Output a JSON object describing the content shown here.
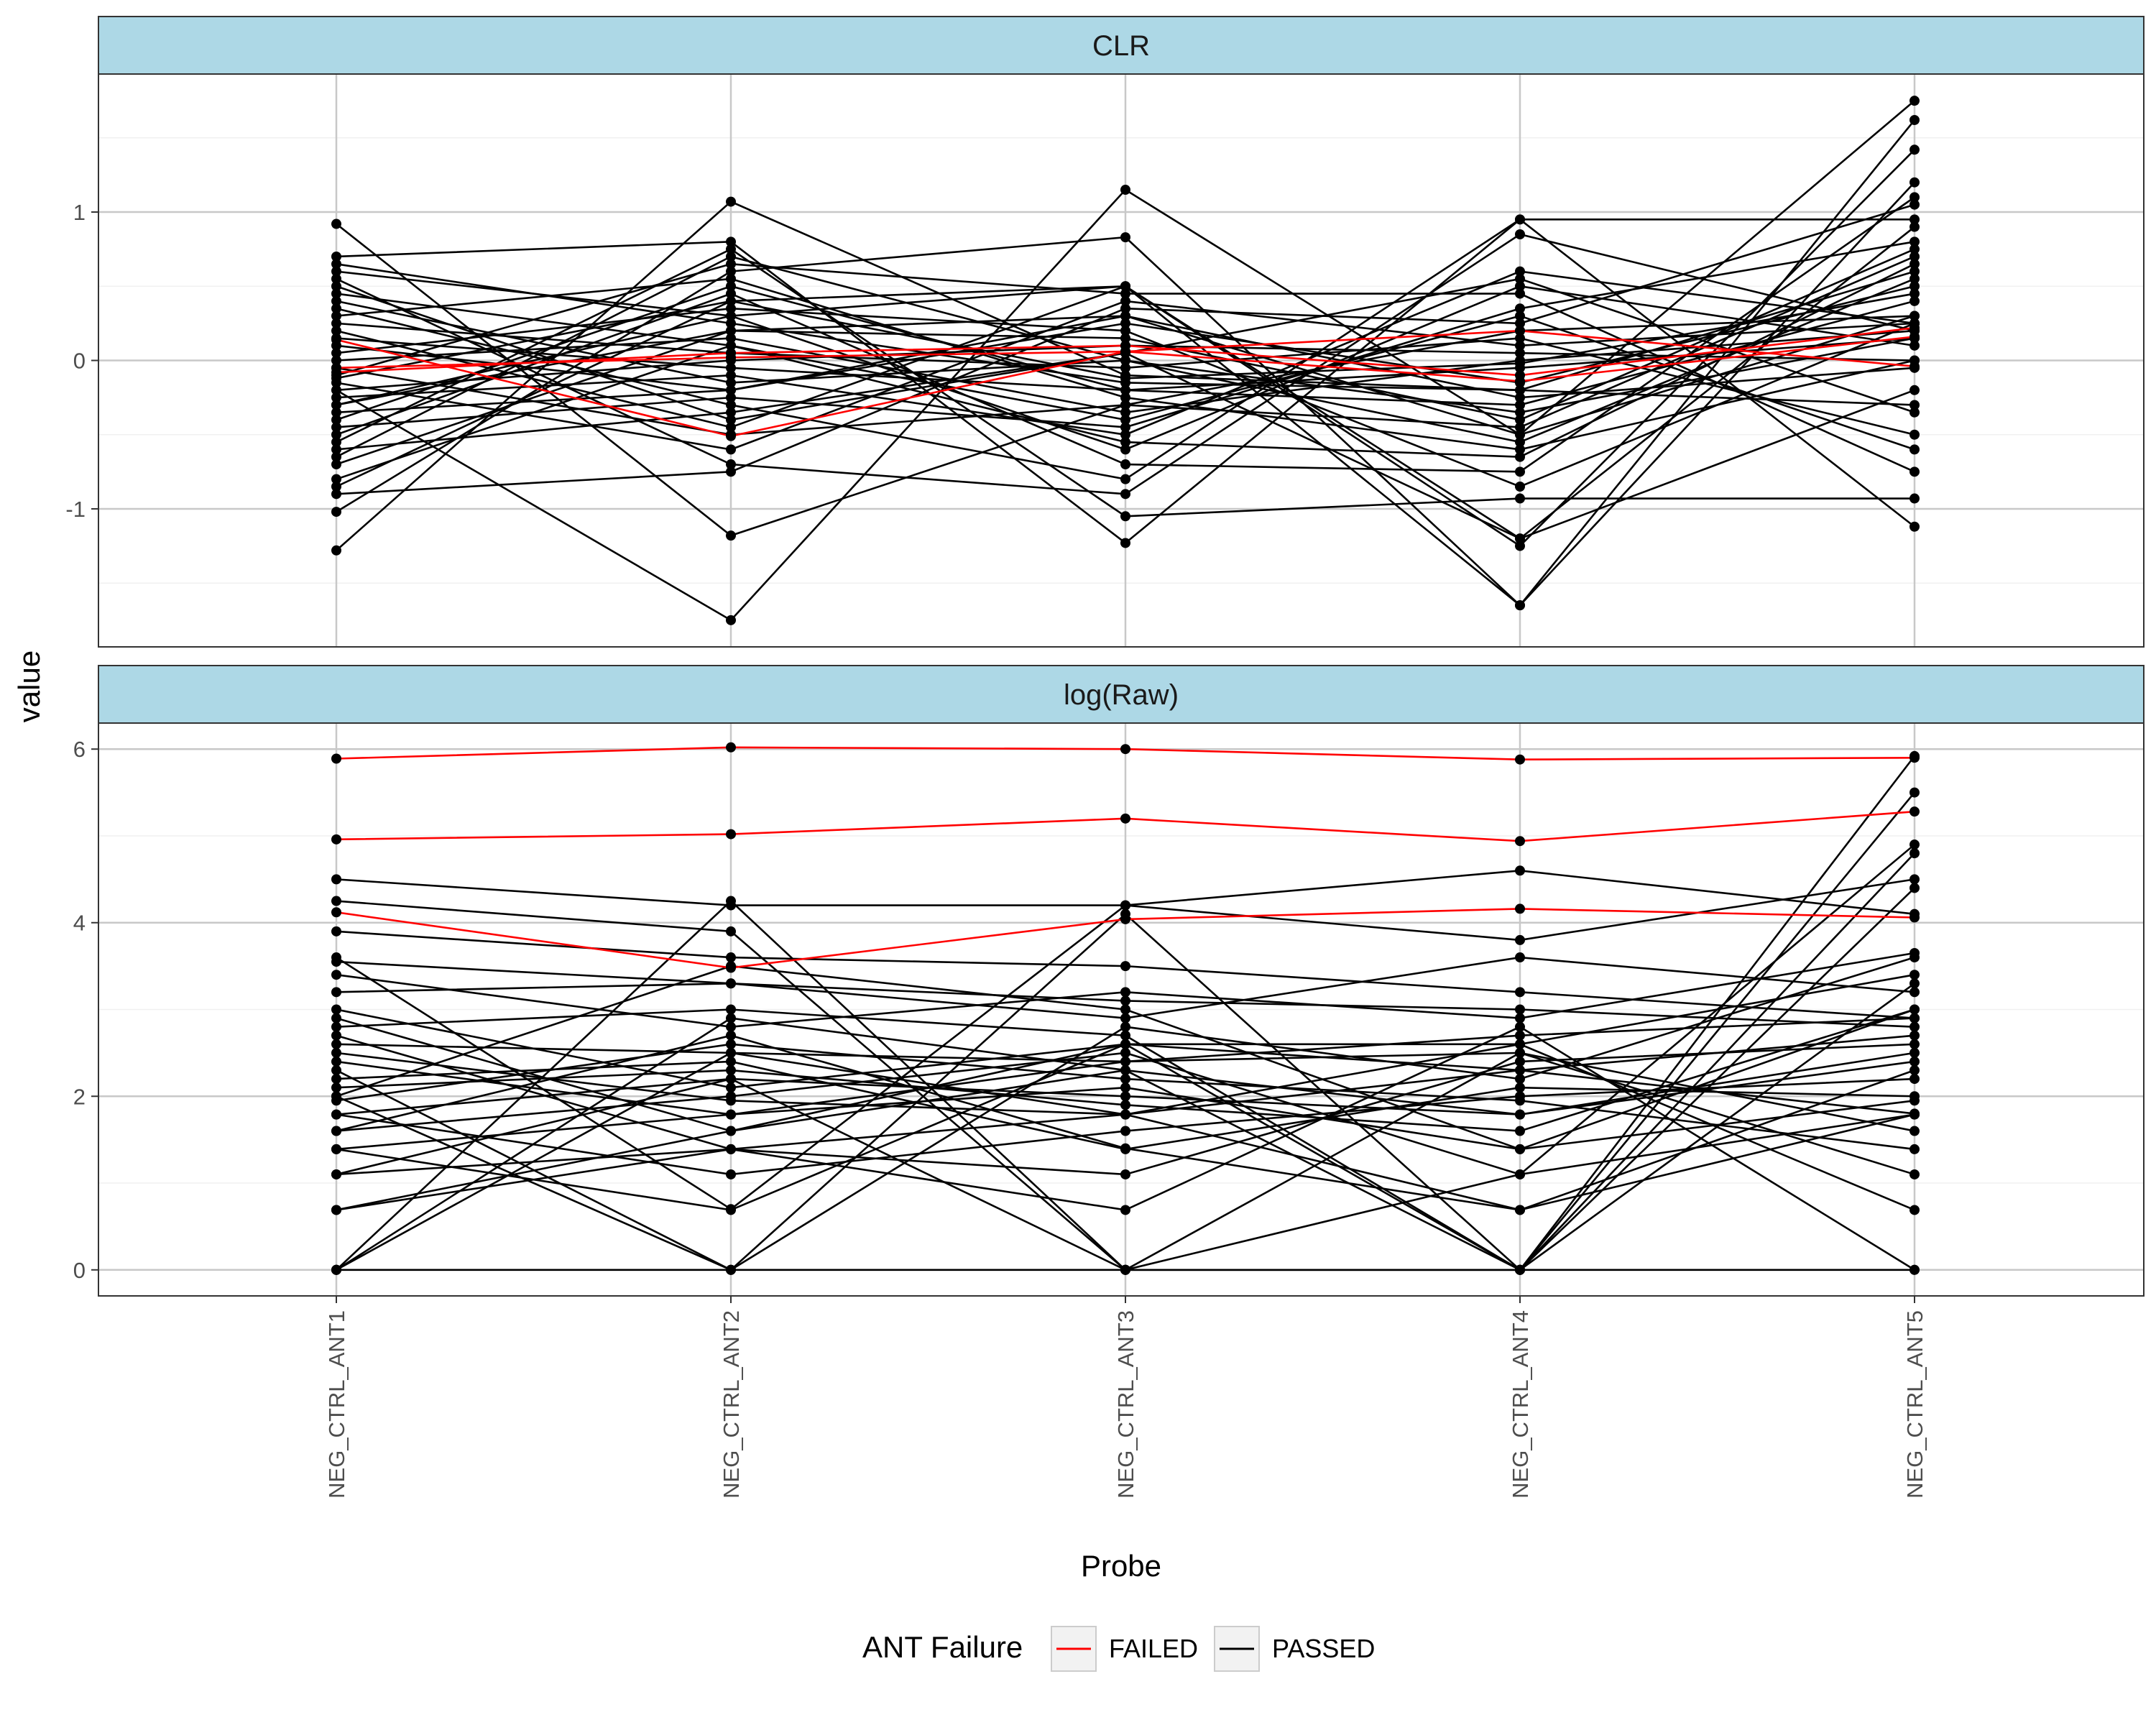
{
  "chart_data": {
    "type": "line",
    "xlabel": "Probe",
    "ylabel": "value",
    "categories": [
      "NEG_CTRL_ANT1",
      "NEG_CTRL_ANT2",
      "NEG_CTRL_ANT3",
      "NEG_CTRL_ANT4",
      "NEG_CTRL_ANT5"
    ],
    "legend": {
      "title": "ANT Failure",
      "placement": "bottom",
      "entries": [
        {
          "label": "FAILED",
          "color": "#ff0000"
        },
        {
          "label": "PASSED",
          "color": "#000000"
        }
      ]
    },
    "grid": true,
    "panels": [
      {
        "strip": "CLR",
        "ylim": [
          -1.93,
          1.93
        ],
        "yticks": [
          -1,
          0,
          1
        ],
        "series": [
          {
            "group": "FAILED",
            "values": [
              -0.05,
              0.02,
              0.06,
              -0.14,
              0.16
            ]
          },
          {
            "group": "FAILED",
            "values": [
              0.14,
              -0.51,
              0.06,
              0.2,
              -0.04
            ]
          },
          {
            "group": "FAILED",
            "values": [
              -0.08,
              0.05,
              0.1,
              -0.1,
              0.22
            ]
          },
          {
            "group": "PASSED",
            "values": [
              0.92,
              -1.18,
              -0.3,
              0.2,
              0.3
            ]
          },
          {
            "group": "PASSED",
            "values": [
              -1.28,
              1.07,
              -0.1,
              -0.2,
              0.6
            ]
          },
          {
            "group": "PASSED",
            "values": [
              -0.2,
              -1.75,
              1.15,
              -0.5,
              1.75
            ]
          },
          {
            "group": "PASSED",
            "values": [
              0.7,
              0.8,
              -1.23,
              0.95,
              -1.12
            ]
          },
          {
            "group": "PASSED",
            "values": [
              -1.02,
              0.6,
              0.83,
              -1.65,
              1.62
            ]
          },
          {
            "group": "PASSED",
            "values": [
              0.55,
              -0.7,
              -0.9,
              0.85,
              0.2
            ]
          },
          {
            "group": "PASSED",
            "values": [
              -0.85,
              0.4,
              0.5,
              -1.25,
              1.42
            ]
          },
          {
            "group": "PASSED",
            "values": [
              0.35,
              -0.3,
              -0.8,
              0.95,
              0.95
            ]
          },
          {
            "group": "PASSED",
            "values": [
              -0.55,
              0.75,
              -1.05,
              -0.93,
              -0.93
            ]
          },
          {
            "group": "PASSED",
            "values": [
              0.2,
              -0.45,
              0.5,
              -1.65,
              1.2
            ]
          },
          {
            "group": "PASSED",
            "values": [
              -0.3,
              0.3,
              -0.6,
              0.5,
              0.1
            ]
          },
          {
            "group": "PASSED",
            "values": [
              0.1,
              -0.2,
              0.3,
              -0.5,
              0.3
            ]
          },
          {
            "group": "PASSED",
            "values": [
              -0.4,
              0.5,
              -0.2,
              -0.3,
              0.4
            ]
          },
          {
            "group": "PASSED",
            "values": [
              0.45,
              0.1,
              -0.4,
              0.3,
              -0.6
            ]
          },
          {
            "group": "PASSED",
            "values": [
              -0.15,
              -0.6,
              0.4,
              0.1,
              0.25
            ]
          },
          {
            "group": "PASSED",
            "values": [
              -0.7,
              0.2,
              0.15,
              -0.4,
              0.75
            ]
          },
          {
            "group": "PASSED",
            "values": [
              0.3,
              0.55,
              -0.25,
              -0.6,
              0.0
            ]
          },
          {
            "group": "PASSED",
            "values": [
              -0.25,
              -0.1,
              -0.5,
              0.6,
              0.25
            ]
          },
          {
            "group": "PASSED",
            "values": [
              0.05,
              0.35,
              0.2,
              -0.85,
              0.25
            ]
          },
          {
            "group": "PASSED",
            "values": [
              -0.6,
              -0.35,
              0.05,
              -1.2,
              0.9
            ]
          },
          {
            "group": "PASSED",
            "values": [
              0.65,
              0.25,
              -0.15,
              -0.2,
              -0.3
            ]
          },
          {
            "group": "PASSED",
            "values": [
              -0.1,
              0.65,
              0.45,
              0.45,
              -0.75
            ]
          },
          {
            "group": "PASSED",
            "values": [
              -0.9,
              -0.75,
              0.35,
              0.25,
              1.05
            ]
          },
          {
            "group": "PASSED",
            "values": [
              0.0,
              0.15,
              -0.35,
              0.0,
              0.2
            ]
          },
          {
            "group": "PASSED",
            "values": [
              -0.35,
              -0.2,
              0.25,
              -0.15,
              0.5
            ]
          },
          {
            "group": "PASSED",
            "values": [
              0.25,
              0.05,
              -0.05,
              0.15,
              -0.5
            ]
          },
          {
            "group": "PASSED",
            "values": [
              -0.5,
              0.45,
              -0.7,
              -0.75,
              1.1
            ]
          },
          {
            "group": "PASSED",
            "values": [
              0.4,
              -0.15,
              0.0,
              -0.35,
              0.15
            ]
          },
          {
            "group": "PASSED",
            "values": [
              -0.2,
              0.0,
              0.1,
              0.05,
              0.0
            ]
          },
          {
            "group": "PASSED",
            "values": [
              0.15,
              -0.05,
              -0.2,
              -0.05,
              0.15
            ]
          },
          {
            "group": "PASSED",
            "values": [
              -0.65,
              0.7,
              0.0,
              -0.55,
              0.55
            ]
          },
          {
            "group": "PASSED",
            "values": [
              -0.45,
              -0.25,
              -0.45,
              0.35,
              0.8
            ]
          },
          {
            "group": "PASSED",
            "values": [
              0.6,
              0.3,
              0.5,
              -1.2,
              -0.2
            ]
          },
          {
            "group": "PASSED",
            "values": [
              -0.8,
              0.1,
              -0.55,
              -0.65,
              0.65
            ]
          },
          {
            "group": "PASSED",
            "values": [
              -0.05,
              -0.5,
              -0.3,
              -0.45,
              0.7
            ]
          },
          {
            "group": "PASSED",
            "values": [
              0.5,
              -0.4,
              0.05,
              0.55,
              -0.35
            ]
          },
          {
            "group": "PASSED",
            "values": [
              -0.3,
              0.2,
              0.3,
              -0.25,
              -0.05
            ]
          },
          {
            "group": "PASSED",
            "values": [
              -0.12,
              0.4,
              -0.12,
              -0.02,
              0.45
            ]
          }
        ]
      },
      {
        "strip": "log(Raw)",
        "ylim": [
          -0.3,
          6.3
        ],
        "yticks": [
          0,
          2,
          4,
          6
        ],
        "series": [
          {
            "group": "FAILED",
            "values": [
              5.89,
              6.02,
              6.0,
              5.88,
              5.9
            ]
          },
          {
            "group": "FAILED",
            "values": [
              4.96,
              5.02,
              5.2,
              4.94,
              5.28
            ]
          },
          {
            "group": "FAILED",
            "values": [
              4.12,
              3.48,
              4.04,
              4.16,
              4.06
            ]
          },
          {
            "group": "PASSED",
            "values": [
              4.5,
              4.2,
              4.2,
              4.6,
              4.1
            ]
          },
          {
            "group": "PASSED",
            "values": [
              0.0,
              0.0,
              0.0,
              0.0,
              0.0
            ]
          },
          {
            "group": "PASSED",
            "values": [
              0.0,
              4.25,
              0.0,
              0.0,
              5.92
            ]
          },
          {
            "group": "PASSED",
            "values": [
              2.0,
              0.0,
              4.1,
              0.0,
              5.5
            ]
          },
          {
            "group": "PASSED",
            "values": [
              4.25,
              3.9,
              0.0,
              1.1,
              4.9
            ]
          },
          {
            "group": "PASSED",
            "values": [
              0.0,
              2.9,
              2.3,
              0.0,
              4.8
            ]
          },
          {
            "group": "PASSED",
            "values": [
              3.6,
              0.7,
              4.2,
              3.8,
              4.5
            ]
          },
          {
            "group": "PASSED",
            "values": [
              0.69,
              1.39,
              0.69,
              2.8,
              0.0
            ]
          },
          {
            "group": "PASSED",
            "values": [
              2.9,
              1.6,
              2.6,
              0.0,
              3.3
            ]
          },
          {
            "group": "PASSED",
            "values": [
              1.1,
              2.2,
              0.0,
              2.5,
              1.6
            ]
          },
          {
            "group": "PASSED",
            "values": [
              3.2,
              3.3,
              3.1,
              3.0,
              2.8
            ]
          },
          {
            "group": "PASSED",
            "values": [
              1.6,
              2.7,
              1.4,
              0.69,
              2.3
            ]
          },
          {
            "group": "PASSED",
            "values": [
              2.3,
              0.0,
              2.8,
              2.2,
              3.6
            ]
          },
          {
            "group": "PASSED",
            "values": [
              3.9,
              3.6,
              3.5,
              3.2,
              2.9
            ]
          },
          {
            "group": "PASSED",
            "values": [
              1.39,
              1.79,
              2.1,
              1.39,
              1.95
            ]
          },
          {
            "group": "PASSED",
            "values": [
              2.6,
              2.5,
              2.4,
              2.7,
              2.9
            ]
          },
          {
            "group": "PASSED",
            "values": [
              1.79,
              1.1,
              1.6,
              2.0,
              2.2
            ]
          },
          {
            "group": "PASSED",
            "values": [
              2.1,
              2.3,
              1.9,
              1.6,
              3.0
            ]
          },
          {
            "group": "PASSED",
            "values": [
              3.0,
              2.1,
              2.6,
              2.3,
              1.8
            ]
          },
          {
            "group": "PASSED",
            "values": [
              0.69,
              1.6,
              2.3,
              1.79,
              2.4
            ]
          },
          {
            "group": "PASSED",
            "values": [
              2.5,
              1.95,
              1.79,
              2.6,
              3.4
            ]
          },
          {
            "group": "PASSED",
            "values": [
              1.95,
              2.6,
              2.2,
              1.95,
              1.39
            ]
          },
          {
            "group": "PASSED",
            "values": [
              3.4,
              2.8,
              3.2,
              2.9,
              3.65
            ]
          },
          {
            "group": "PASSED",
            "values": [
              2.7,
              1.39,
              1.1,
              2.4,
              2.6
            ]
          },
          {
            "group": "PASSED",
            "values": [
              1.6,
              2.0,
              2.5,
              1.1,
              1.79
            ]
          },
          {
            "group": "PASSED",
            "values": [
              2.2,
              2.4,
              1.39,
              2.1,
              2.0
            ]
          },
          {
            "group": "PASSED",
            "values": [
              3.55,
              3.3,
              2.9,
              3.6,
              3.2
            ]
          },
          {
            "group": "PASSED",
            "values": [
              1.79,
              2.2,
              2.0,
              1.79,
              2.5
            ]
          },
          {
            "group": "PASSED",
            "values": [
              2.4,
              1.79,
              2.4,
              2.5,
              1.1
            ]
          },
          {
            "group": "PASSED",
            "values": [
              0.0,
              2.5,
              1.79,
              2.3,
              2.7
            ]
          },
          {
            "group": "PASSED",
            "values": [
              2.8,
              3.0,
              2.7,
              0.0,
              4.4
            ]
          },
          {
            "group": "PASSED",
            "values": [
              1.39,
              0.69,
              2.6,
              2.6,
              0.69
            ]
          },
          {
            "group": "PASSED",
            "values": [
              2.0,
              3.5,
              3.0,
              1.39,
              3.0
            ]
          },
          {
            "group": "PASSED",
            "values": [
              1.1,
              1.39,
              1.79,
              0.69,
              1.79
            ]
          }
        ]
      }
    ]
  }
}
